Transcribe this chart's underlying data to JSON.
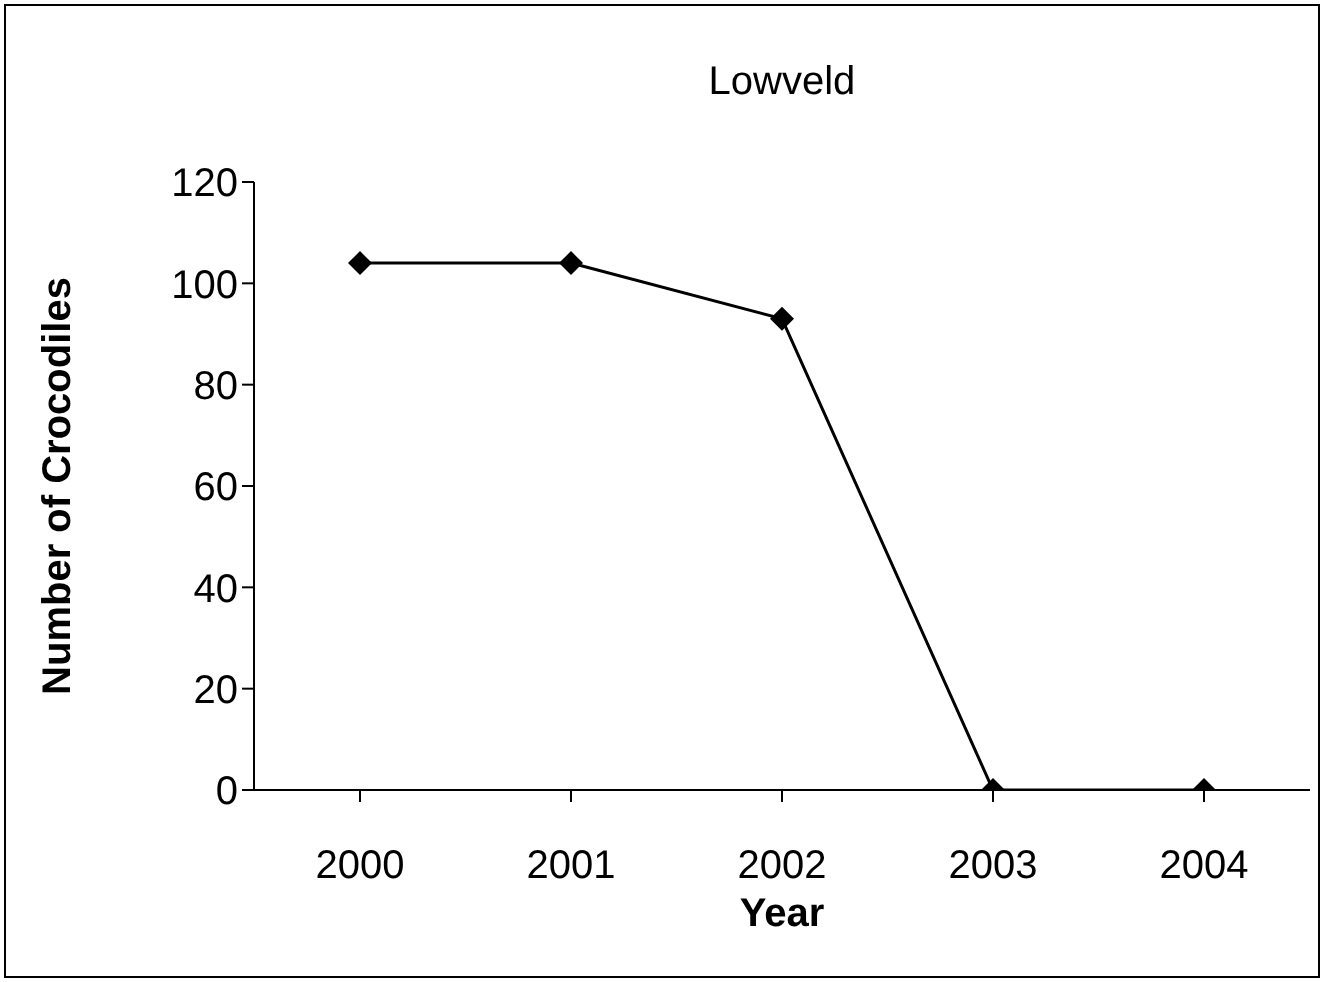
{
  "chart_data": {
    "type": "line",
    "title": "Lowveld",
    "xlabel": "Year",
    "ylabel": "Number of Crocodiles",
    "categories": [
      "2000",
      "2001",
      "2002",
      "2003",
      "2004"
    ],
    "series": [
      {
        "color": "#000000",
        "values": [
          104,
          104,
          93,
          0,
          0
        ]
      }
    ],
    "ylim": [
      0,
      120
    ],
    "yticks": [
      0,
      20,
      40,
      60,
      80,
      100,
      120
    ],
    "grid": false,
    "legend": false,
    "marker": "diamond",
    "line_style": "solid"
  }
}
